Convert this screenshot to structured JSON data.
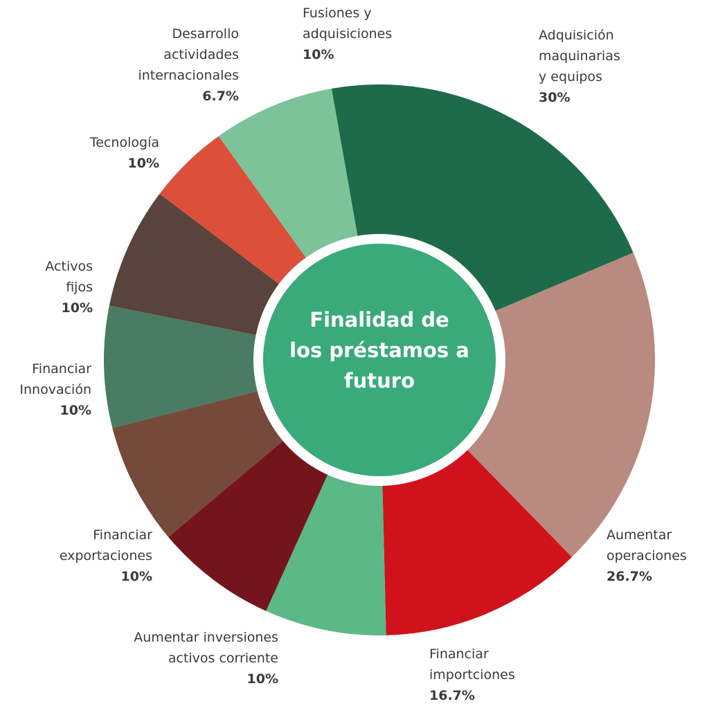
{
  "chart_data": {
    "type": "donut",
    "title": "Finalidad de\nlos préstamos a\nfuturo",
    "categories": [
      "Adquisición\nmaquinarias\ny equipos",
      "Aumentar\noperaciones",
      "Financiar\nimportciones",
      "Aumentar inversiones\nactivos corriente",
      "Financiar\nexportaciones",
      "Financiar\nInnovación",
      "Activos\nfijos",
      "Tecnología",
      "Desarrollo\nactividades\ninternacionales",
      "Fusiones y\nadquisiciones"
    ],
    "values": [
      30,
      26.7,
      16.7,
      10,
      10,
      10,
      10,
      10,
      6.7,
      10
    ],
    "value_labels": [
      "30%",
      "26.7%",
      "16.7%",
      "10%",
      "10%",
      "10%",
      "10%",
      "10%",
      "6.7%",
      "10%"
    ],
    "colors": [
      "#1d6b4a",
      "#b98a80",
      "#d0121d",
      "#5cb887",
      "#74151d",
      "#764a3a",
      "#4a7c63",
      "#5a423d",
      "#dc503b",
      "#7cc39a"
    ],
    "center_color": "#3aaa7a"
  }
}
